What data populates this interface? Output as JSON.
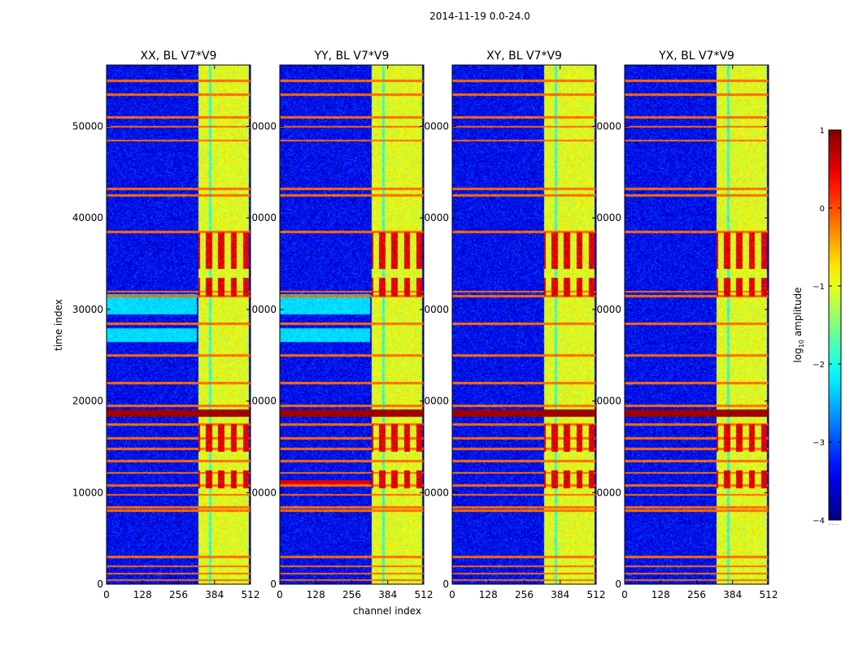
{
  "figure": {
    "title": "2014-11-19 0.0-24.0"
  },
  "chart_data": {
    "type": "heatmap",
    "title": "2014-11-19 0.0-24.0",
    "xlabel": "channel index",
    "ylabel": "time index",
    "xlim": [
      0,
      512
    ],
    "ylim": [
      0,
      56700
    ],
    "x_ticks": [
      0,
      128,
      256,
      384,
      512
    ],
    "y_ticks": [
      0,
      10000,
      20000,
      30000,
      40000,
      50000
    ],
    "x_tick_labels": [
      "0",
      "128",
      "256",
      "384",
      "512"
    ],
    "y_tick_labels": [
      "0",
      "10000",
      "20000",
      "30000",
      "40000",
      "50000"
    ],
    "panels": [
      {
        "name": "XX",
        "title": "XX, BL V7*V9",
        "y_tick_labels": [
          "0",
          "10000",
          "20000",
          "30000",
          "40000",
          "50000"
        ]
      },
      {
        "name": "YY",
        "title": "YY, BL V7*V9",
        "y_tick_labels": [
          "0",
          "0000",
          "0000",
          "0000",
          "0000",
          "0000"
        ]
      },
      {
        "name": "XY",
        "title": "XY, BL V7*V9",
        "y_tick_labels": [
          "0",
          "0000",
          "0000",
          "0000",
          "0000",
          "0000"
        ]
      },
      {
        "name": "YX",
        "title": "YX, BL V7*V9",
        "y_tick_labels": [
          "0",
          "0000",
          "0000",
          "0000",
          "0000",
          "0000"
        ]
      }
    ],
    "structure": {
      "background_level": -3.4,
      "band_x_range": [
        325,
        505
      ],
      "band_level": -1.0,
      "band_gap_channels": [
        362,
        372
      ],
      "horizontal_rfi_rows": [
        500,
        1200,
        2000,
        3000,
        8100,
        8400,
        9800,
        10800,
        12200,
        13500,
        14800,
        16000,
        17500,
        18800,
        19500,
        22000,
        25000,
        28500,
        31500,
        32000,
        38500,
        42500,
        43200,
        48500,
        50000,
        51000,
        53500,
        55000
      ],
      "strong_rfi_rows": [
        18500,
        18900
      ],
      "bright_blocks_y": [
        [
          10500,
          12500
        ],
        [
          14500,
          17500
        ],
        [
          31500,
          33500
        ],
        [
          34500,
          38500
        ]
      ]
    },
    "colorbar": {
      "label": "log10 amplitude",
      "label_base": "log",
      "label_sub": "10",
      "label_rest": " amplitude",
      "min": -4,
      "max": 1,
      "ticks": [
        1,
        0,
        -1,
        -2,
        -3,
        -4
      ],
      "tick_labels": [
        "1",
        "0",
        "−1",
        "−2",
        "−3",
        "−4"
      ],
      "colormap": "jet",
      "extra_label": "······"
    }
  }
}
